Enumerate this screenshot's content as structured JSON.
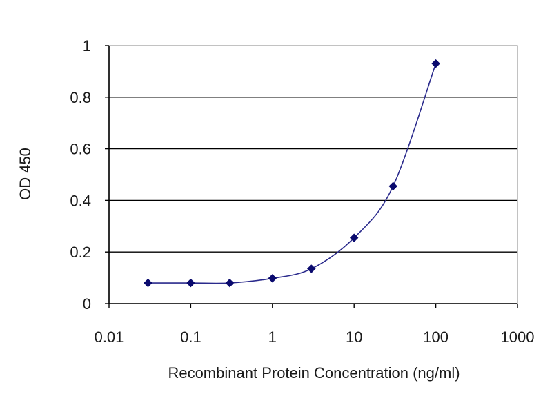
{
  "chart_data": {
    "type": "line",
    "title": "",
    "xlabel": "Recombinant Protein Concentration (ng/ml)",
    "ylabel": "OD 450",
    "x_scale": "log",
    "xlim": [
      0.01,
      1000
    ],
    "ylim": [
      0,
      1
    ],
    "x_ticks": [
      "0.01",
      "0.1",
      "1",
      "10",
      "100",
      "1000"
    ],
    "y_ticks": [
      "0",
      "0.2",
      "0.4",
      "0.6",
      "0.8",
      "1"
    ],
    "grid": "horizontal",
    "legend": "none",
    "series": [
      {
        "x": [
          0.03,
          0.1,
          0.3,
          1,
          3,
          10,
          30,
          100
        ],
        "y": [
          0.08,
          0.08,
          0.08,
          0.098,
          0.135,
          0.255,
          0.455,
          0.93
        ]
      }
    ],
    "colors": {
      "line": "#2a2a8c",
      "marker": "#0a0a6e",
      "grid": "#000000",
      "plot_border": "#9a9a9a",
      "axis": "#000000"
    }
  }
}
